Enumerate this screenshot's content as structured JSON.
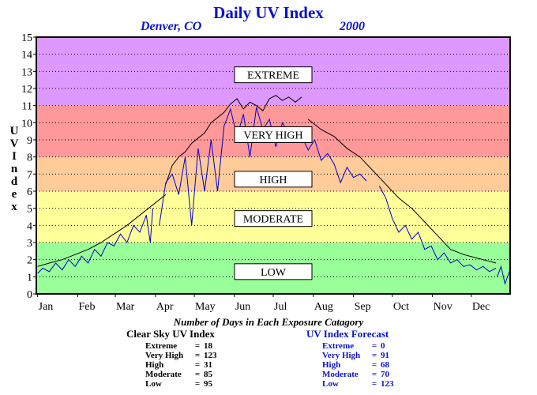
{
  "title": "Daily UV Index",
  "location": "Denver, CO",
  "year": "2000",
  "y_axis_label": "UV Index",
  "caption": "Number of Days in Each Exposure Catagory",
  "tables": {
    "clear_sky": {
      "heading": "Clear Sky UV Index",
      "rows": [
        {
          "label": "Extreme",
          "eq": "=",
          "value": "18"
        },
        {
          "label": "Very High",
          "eq": "=",
          "value": "123"
        },
        {
          "label": "High",
          "eq": "=",
          "value": "31"
        },
        {
          "label": "Moderate",
          "eq": "=",
          "value": "85"
        },
        {
          "label": "Low",
          "eq": "=",
          "value": "95"
        }
      ]
    },
    "forecast": {
      "heading": "UV Index Forecast",
      "rows": [
        {
          "label": "Extreme",
          "eq": "=",
          "value": "0"
        },
        {
          "label": "Very High",
          "eq": "=",
          "value": "91"
        },
        {
          "label": "High",
          "eq": "=",
          "value": "68"
        },
        {
          "label": "Moderate",
          "eq": "=",
          "value": "70"
        },
        {
          "label": "Low",
          "eq": "=",
          "value": "123"
        }
      ]
    }
  },
  "chart_data": {
    "type": "line",
    "title": "Daily UV Index",
    "subtitle": [
      "Denver, CO",
      "2000"
    ],
    "ylabel": "UV Index",
    "ylim": [
      0,
      15
    ],
    "xlim": [
      0,
      366
    ],
    "yticks": [
      0,
      1,
      2,
      3,
      4,
      5,
      6,
      7,
      8,
      9,
      10,
      11,
      12,
      13,
      14,
      15
    ],
    "xticks": [
      {
        "label": "Jan",
        "day": 1
      },
      {
        "label": "Feb",
        "day": 32
      },
      {
        "label": "Mar",
        "day": 61
      },
      {
        "label": "Apr",
        "day": 92
      },
      {
        "label": "May",
        "day": 122
      },
      {
        "label": "Jun",
        "day": 153
      },
      {
        "label": "Jul",
        "day": 183
      },
      {
        "label": "Aug",
        "day": 214
      },
      {
        "label": "Sep",
        "day": 245
      },
      {
        "label": "Oct",
        "day": 275
      },
      {
        "label": "Nov",
        "day": 306
      },
      {
        "label": "Dec",
        "day": 336
      }
    ],
    "grid": "horizontal dotted",
    "bands": [
      {
        "label": "LOW",
        "from": 0,
        "to": 3,
        "color": "#99ff99"
      },
      {
        "label": "MODERATE",
        "from": 3,
        "to": 6,
        "color": "#ffff99"
      },
      {
        "label": "HIGH",
        "from": 6,
        "to": 8,
        "color": "#ffcc99"
      },
      {
        "label": "VERY HIGH",
        "from": 8,
        "to": 11,
        "color": "#ff9999"
      },
      {
        "label": "EXTREME",
        "from": 11,
        "to": 15,
        "color": "#dd99ff"
      }
    ],
    "series": [
      {
        "color": "#000000",
        "segments": [
          {
            "x": [
              1,
              10,
              20,
              30,
              40,
              50,
              60,
              70,
              80,
              90,
              100
            ],
            "y": [
              1.6,
              1.8,
              2.0,
              2.3,
              2.6,
              3.0,
              3.5,
              4.0,
              4.6,
              5.2,
              5.8
            ]
          },
          {
            "x": [
              100,
              105,
              110,
              115,
              120,
              125,
              130,
              135,
              140,
              145,
              150,
              155,
              160,
              165,
              170,
              175,
              180,
              185,
              190,
              195,
              200,
              205
            ],
            "y": [
              6.4,
              7.5,
              8.0,
              8.3,
              8.8,
              9.1,
              9.4,
              10.0,
              10.3,
              10.6,
              11.1,
              11.4,
              10.8,
              11.2,
              11.0,
              10.7,
              11.4,
              11.6,
              11.3,
              11.5,
              11.2,
              11.5
            ]
          },
          {
            "x": [
              210,
              220,
              230,
              240,
              250,
              260,
              270,
              280,
              290,
              300,
              310,
              320,
              330,
              340,
              350,
              355
            ],
            "y": [
              10.2,
              9.6,
              9.2,
              8.5,
              8.0,
              7.2,
              6.4,
              5.6,
              5.0,
              4.2,
              3.4,
              2.6,
              2.3,
              2.1,
              1.9,
              1.8
            ]
          }
        ]
      },
      {
        "color": "#0000cc",
        "segments": [
          {
            "x": [
              1,
              5,
              10,
              15,
              20,
              25,
              30,
              35,
              40,
              45,
              50,
              55,
              60,
              65,
              70,
              75,
              80,
              85,
              88,
              90
            ],
            "y": [
              1.2,
              1.5,
              1.3,
              1.8,
              1.4,
              2.0,
              1.6,
              2.2,
              1.8,
              2.6,
              2.2,
              3.0,
              2.8,
              3.5,
              3.0,
              4.0,
              3.6,
              4.6,
              3.0,
              5.0
            ]
          },
          {
            "x": [
              95,
              100,
              105,
              110,
              115,
              120,
              125,
              130,
              135,
              140,
              145,
              150,
              155,
              160,
              165,
              170,
              175,
              180,
              185,
              190,
              195,
              200,
              205,
              210,
              215,
              220,
              225,
              230,
              235,
              240,
              245,
              250,
              255
            ],
            "y": [
              4.0,
              6.5,
              7.0,
              5.8,
              8.0,
              4.0,
              8.5,
              6.0,
              9.0,
              6.0,
              9.8,
              10.8,
              9.2,
              10.5,
              8.0,
              10.9,
              9.6,
              10.2,
              8.6,
              10.0,
              9.4,
              9.0,
              9.2,
              8.4,
              9.0,
              7.8,
              8.2,
              7.6,
              6.5,
              7.4,
              6.8,
              7.0,
              6.6
            ]
          },
          {
            "x": [
              265,
              270,
              275,
              280,
              285,
              290,
              295,
              300,
              305,
              310,
              315,
              320,
              325,
              330,
              335,
              340,
              345,
              350,
              355
            ],
            "y": [
              6.3,
              5.6,
              4.4,
              3.6,
              4.0,
              3.2,
              3.6,
              2.6,
              2.8,
              2.0,
              2.4,
              1.8,
              2.0,
              1.6,
              1.7,
              1.4,
              1.6,
              1.3,
              1.5
            ]
          },
          {
            "x": [
              356,
              359,
              362,
              366
            ],
            "y": [
              1.0,
              1.6,
              0.6,
              1.4
            ]
          }
        ]
      }
    ]
  }
}
